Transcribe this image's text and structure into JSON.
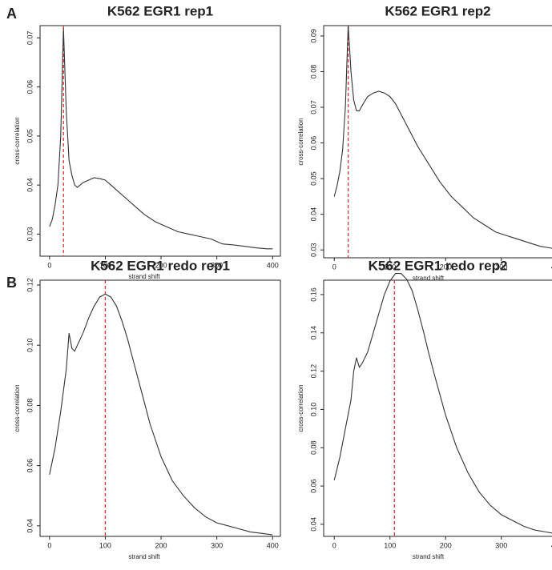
{
  "panel_labels": [
    "A",
    "B"
  ],
  "chart_data": [
    {
      "type": "line",
      "title": "K562 EGR1 rep1",
      "x_label": "strand shift",
      "y_label": "cross-correlation",
      "x": [
        0,
        5,
        10,
        15,
        20,
        25,
        30,
        35,
        40,
        45,
        50,
        60,
        70,
        80,
        90,
        100,
        110,
        120,
        130,
        140,
        150,
        170,
        190,
        210,
        230,
        250,
        270,
        290,
        310,
        330,
        350,
        370,
        390,
        400
      ],
      "series": [
        {
          "color": "#333333",
          "values": [
            0.0315,
            0.033,
            0.036,
            0.04,
            0.05,
            0.072,
            0.055,
            0.045,
            0.042,
            0.04,
            0.0395,
            0.0405,
            0.041,
            0.0415,
            0.0413,
            0.041,
            0.04,
            0.039,
            0.038,
            0.037,
            0.036,
            0.034,
            0.0325,
            0.0315,
            0.0305,
            0.03,
            0.0295,
            0.029,
            0.028,
            0.0278,
            0.0275,
            0.0272,
            0.027,
            0.027
          ]
        }
      ],
      "vline": 25,
      "vline_color": "#e0302a",
      "xlim": [
        -17,
        414
      ],
      "xticks": [
        0,
        100,
        200,
        300,
        400
      ],
      "ylim": [
        0.0255,
        0.0725
      ],
      "yticks": [
        0.03,
        0.04,
        0.05,
        0.06,
        0.07
      ]
    },
    {
      "type": "line",
      "title": "K562 EGR1 rep2",
      "x_label": "strand shift",
      "y_label": "cross-correlation",
      "x": [
        0,
        5,
        10,
        15,
        20,
        25,
        30,
        35,
        40,
        45,
        50,
        60,
        70,
        80,
        90,
        100,
        110,
        120,
        130,
        140,
        150,
        170,
        190,
        210,
        230,
        250,
        270,
        290,
        310,
        330,
        350,
        370,
        390,
        400
      ],
      "series": [
        {
          "color": "#333333",
          "values": [
            0.045,
            0.048,
            0.052,
            0.058,
            0.07,
            0.093,
            0.08,
            0.072,
            0.069,
            0.069,
            0.0705,
            0.073,
            0.074,
            0.0745,
            0.074,
            0.073,
            0.071,
            0.068,
            0.065,
            0.062,
            0.059,
            0.054,
            0.049,
            0.045,
            0.042,
            0.039,
            0.037,
            0.035,
            0.034,
            0.033,
            0.032,
            0.031,
            0.0305,
            0.03
          ]
        }
      ],
      "vline": 25,
      "vline_color": "#e0302a",
      "xlim": [
        -19,
        414
      ],
      "xticks": [
        0,
        100,
        200,
        300,
        400
      ],
      "ylim": [
        0.0278,
        0.0929
      ],
      "yticks": [
        0.03,
        0.04,
        0.05,
        0.06,
        0.07,
        0.08,
        0.09
      ]
    },
    {
      "type": "line",
      "title": "K562 EGR1 redo rep1",
      "x_label": "strand shift",
      "y_label": "cross-correlation",
      "x": [
        0,
        10,
        20,
        30,
        35,
        40,
        45,
        50,
        60,
        70,
        80,
        90,
        100,
        110,
        120,
        130,
        140,
        150,
        160,
        170,
        180,
        200,
        220,
        240,
        260,
        280,
        300,
        320,
        340,
        360,
        380,
        400
      ],
      "series": [
        {
          "color": "#333333",
          "values": [
            0.057,
            0.066,
            0.078,
            0.092,
            0.104,
            0.099,
            0.098,
            0.1,
            0.104,
            0.109,
            0.113,
            0.116,
            0.117,
            0.116,
            0.113,
            0.108,
            0.102,
            0.095,
            0.088,
            0.081,
            0.074,
            0.063,
            0.055,
            0.05,
            0.046,
            0.043,
            0.041,
            0.04,
            0.039,
            0.038,
            0.0375,
            0.037
          ]
        }
      ],
      "vline": 100,
      "vline_color": "#e0302a",
      "xlim": [
        -17,
        414
      ],
      "xticks": [
        0,
        100,
        200,
        300,
        400
      ],
      "ylim": [
        0.0365,
        0.1216
      ],
      "yticks": [
        0.04,
        0.06,
        0.08,
        {
          "value": 0.1,
          "label": "0.10"
        },
        0.12
      ]
    },
    {
      "type": "line",
      "title": "K562 EGR1 redo rep2",
      "x_label": "strand shift",
      "y_label": "cross-correlation",
      "x": [
        0,
        10,
        20,
        30,
        35,
        40,
        45,
        50,
        60,
        70,
        80,
        90,
        100,
        110,
        120,
        130,
        140,
        150,
        160,
        170,
        180,
        200,
        220,
        240,
        260,
        280,
        300,
        320,
        340,
        360,
        380,
        400
      ],
      "series": [
        {
          "color": "#333333",
          "values": [
            0.063,
            0.075,
            0.09,
            0.105,
            0.12,
            0.127,
            0.122,
            0.124,
            0.13,
            0.14,
            0.15,
            0.16,
            0.167,
            0.171,
            0.171,
            0.168,
            0.162,
            0.152,
            0.141,
            0.129,
            0.118,
            0.097,
            0.08,
            0.067,
            0.057,
            0.05,
            0.045,
            0.042,
            0.039,
            0.037,
            0.036,
            0.035
          ]
        }
      ],
      "vline": 108,
      "vline_color": "#e0302a",
      "xlim": [
        -19,
        414
      ],
      "xticks": [
        0,
        100,
        200,
        300,
        400
      ],
      "ylim": [
        0.0337,
        0.1675
      ],
      "yticks": [
        0.04,
        0.06,
        0.08,
        {
          "value": 0.1,
          "label": "0.10"
        },
        0.12,
        0.14,
        0.16
      ]
    }
  ]
}
